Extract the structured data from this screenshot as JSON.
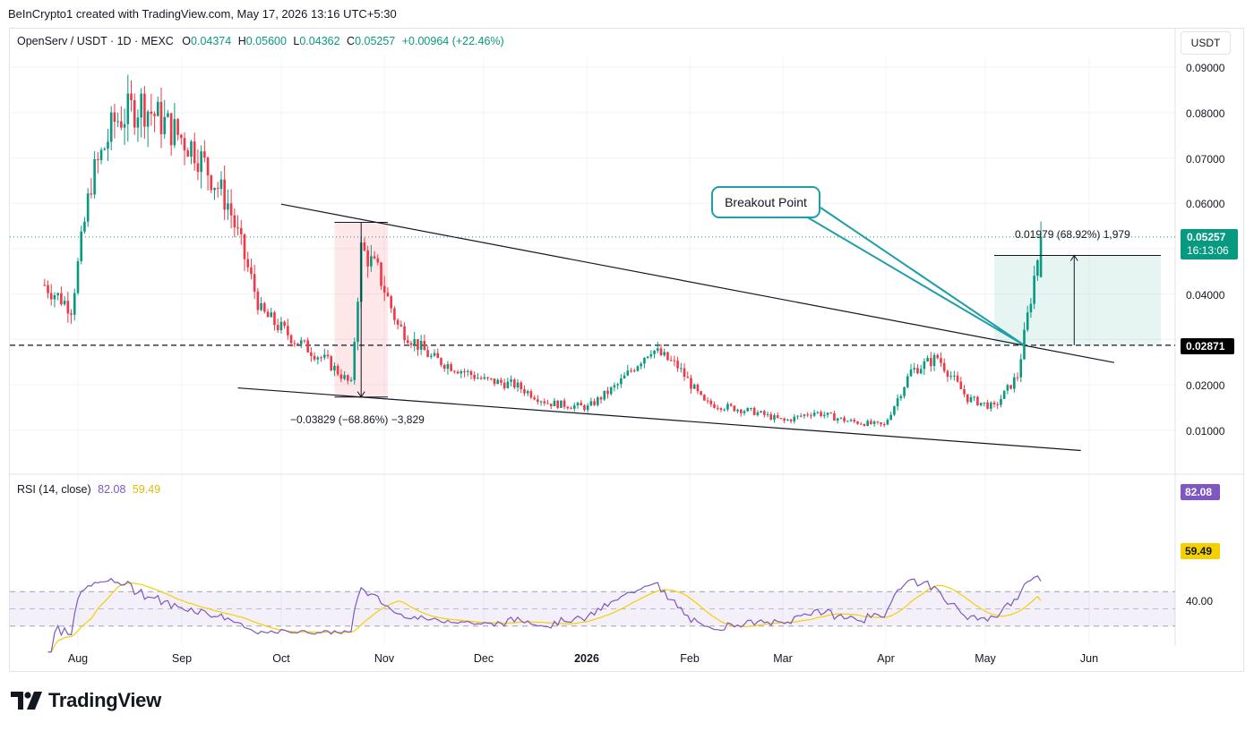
{
  "header": {
    "text": "BeInCrypto1 created with TradingView.com, May 17, 2026 13:16 UTC+5:30"
  },
  "legend": {
    "symbol": "OpenServ / USDT · 1D · MEXC",
    "o_label": "O",
    "o_value": "0.04374",
    "h_label": "H",
    "h_value": "0.05600",
    "l_label": "L",
    "l_value": "0.04362",
    "c_label": "C",
    "c_value": "0.05257",
    "change": "+0.00964 (+22.46%)"
  },
  "currency_button": "USDT",
  "price_axis": [
    "0.09000",
    "0.08000",
    "0.07000",
    "0.06000",
    "0.04000",
    "0.02000",
    "0.01000"
  ],
  "price_tag": {
    "price": "0.05257",
    "countdown": "16:13:06"
  },
  "level_tag": "0.02871",
  "annotations": {
    "callout": "Breakout Point",
    "measure_up": "0.01979 (68.92%) 1,979",
    "measure_down": "−0.03829 (−68.86%) −3,829"
  },
  "rsi": {
    "label": "RSI (14, close)",
    "value": "82.08",
    "ma_value": "59.49",
    "axis": [
      "40.00"
    ],
    "tag_value": "82.08",
    "tag_ma": "59.49"
  },
  "x_axis": [
    {
      "label": "Aug",
      "bold": false
    },
    {
      "label": "Sep",
      "bold": false
    },
    {
      "label": "Oct",
      "bold": false
    },
    {
      "label": "Nov",
      "bold": false
    },
    {
      "label": "Dec",
      "bold": false
    },
    {
      "label": "2026",
      "bold": true
    },
    {
      "label": "Feb",
      "bold": false
    },
    {
      "label": "Mar",
      "bold": false
    },
    {
      "label": "Apr",
      "bold": false
    },
    {
      "label": "May",
      "bold": false
    },
    {
      "label": "Jun",
      "bold": false
    }
  ],
  "logo": {
    "text": "TradingView"
  },
  "colors": {
    "up": "#089981",
    "down": "#f23645",
    "rsi": "#7e57c2",
    "rsi_ma": "#f5d000",
    "callout": "#1e9ea7"
  },
  "chart_data": {
    "type": "candlestick",
    "ylim": [
      0,
      0.095
    ],
    "price_key": [
      [
        "2025-07-22",
        0.042
      ],
      [
        "2025-07-30",
        0.037
      ],
      [
        "2025-08-05",
        0.065
      ],
      [
        "2025-08-12",
        0.078
      ],
      [
        "2025-08-20",
        0.082
      ],
      [
        "2025-08-28",
        0.077
      ],
      [
        "2025-09-05",
        0.072
      ],
      [
        "2025-09-15",
        0.06
      ],
      [
        "2025-09-25",
        0.036
      ],
      [
        "2025-10-05",
        0.03
      ],
      [
        "2025-10-15",
        0.025
      ],
      [
        "2025-10-22",
        0.02
      ],
      [
        "2025-10-25",
        0.05
      ],
      [
        "2025-10-30",
        0.045
      ],
      [
        "2025-11-05",
        0.033
      ],
      [
        "2025-11-15",
        0.026
      ],
      [
        "2025-12-01",
        0.021
      ],
      [
        "2025-12-10",
        0.02
      ],
      [
        "2025-12-20",
        0.016
      ],
      [
        "2026-01-01",
        0.015
      ],
      [
        "2026-01-10",
        0.02
      ],
      [
        "2026-01-20",
        0.028
      ],
      [
        "2026-01-28",
        0.024
      ],
      [
        "2026-02-05",
        0.016
      ],
      [
        "2026-02-20",
        0.014
      ],
      [
        "2026-03-01",
        0.012
      ],
      [
        "2026-03-10",
        0.014
      ],
      [
        "2026-03-20",
        0.012
      ],
      [
        "2026-03-31",
        0.011
      ],
      [
        "2026-04-08",
        0.023
      ],
      [
        "2026-04-16",
        0.026
      ],
      [
        "2026-04-25",
        0.017
      ],
      [
        "2026-05-03",
        0.015
      ],
      [
        "2026-05-10",
        0.022
      ],
      [
        "2026-05-13",
        0.035
      ],
      [
        "2026-05-17",
        0.05257
      ]
    ],
    "last": {
      "open": 0.04374,
      "high": 0.056,
      "low": 0.04362,
      "close": 0.05257,
      "change": 0.00964,
      "change_pct": 22.46
    },
    "rsi_14": 82.08,
    "rsi_ma": 59.49,
    "support_level": 0.02871,
    "measurements": [
      {
        "change": -0.03829,
        "change_pct": -68.86,
        "ticks": -3829
      },
      {
        "change": 0.01979,
        "change_pct": 68.92,
        "ticks": 1979
      }
    ],
    "x_ticks": [
      "Aug",
      "Sep",
      "Oct",
      "Nov",
      "Dec",
      "2026",
      "Feb",
      "Mar",
      "Apr",
      "May",
      "Jun"
    ]
  }
}
